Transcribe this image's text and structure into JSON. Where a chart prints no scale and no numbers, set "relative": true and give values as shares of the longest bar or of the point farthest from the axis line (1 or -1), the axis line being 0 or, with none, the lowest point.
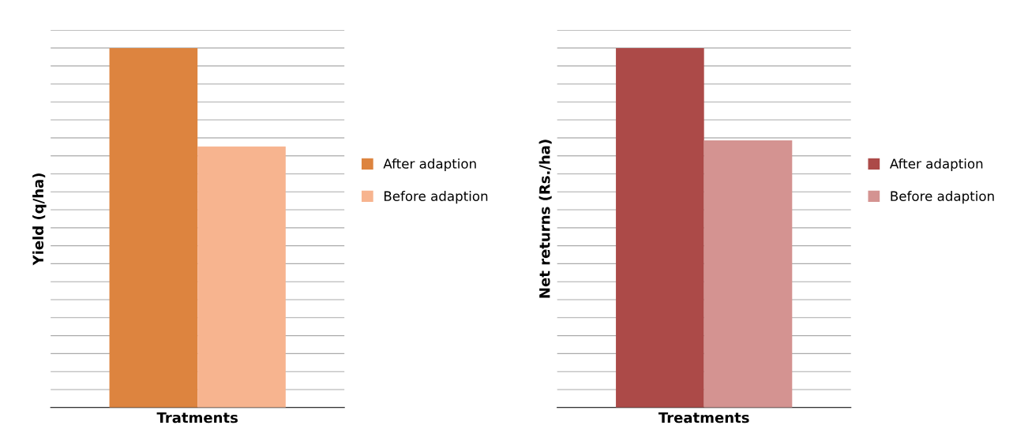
{
  "chart_data": [
    {
      "type": "bar",
      "relative": true,
      "categories": [
        null
      ],
      "xlabel": "Tratments",
      "ylabel": "Yield (q/ha)",
      "grid": "y",
      "legend": "right",
      "series": [
        {
          "name": "After adaption",
          "color": "#dd843f",
          "values": [
            1
          ]
        },
        {
          "name": "Before adaption",
          "color": "#f7b48f",
          "values": [
            0.726
          ]
        }
      ]
    },
    {
      "type": "bar",
      "relative": true,
      "categories": [
        null
      ],
      "xlabel": "Treatments",
      "ylabel": "Net returns (Rs./ha)",
      "grid": "y",
      "legend": "right",
      "series": [
        {
          "name": "After adaption",
          "color": "#ac4a48",
          "values": [
            1
          ]
        },
        {
          "name": "Before adaption",
          "color": "#d49391",
          "values": [
            0.743
          ]
        }
      ]
    }
  ]
}
